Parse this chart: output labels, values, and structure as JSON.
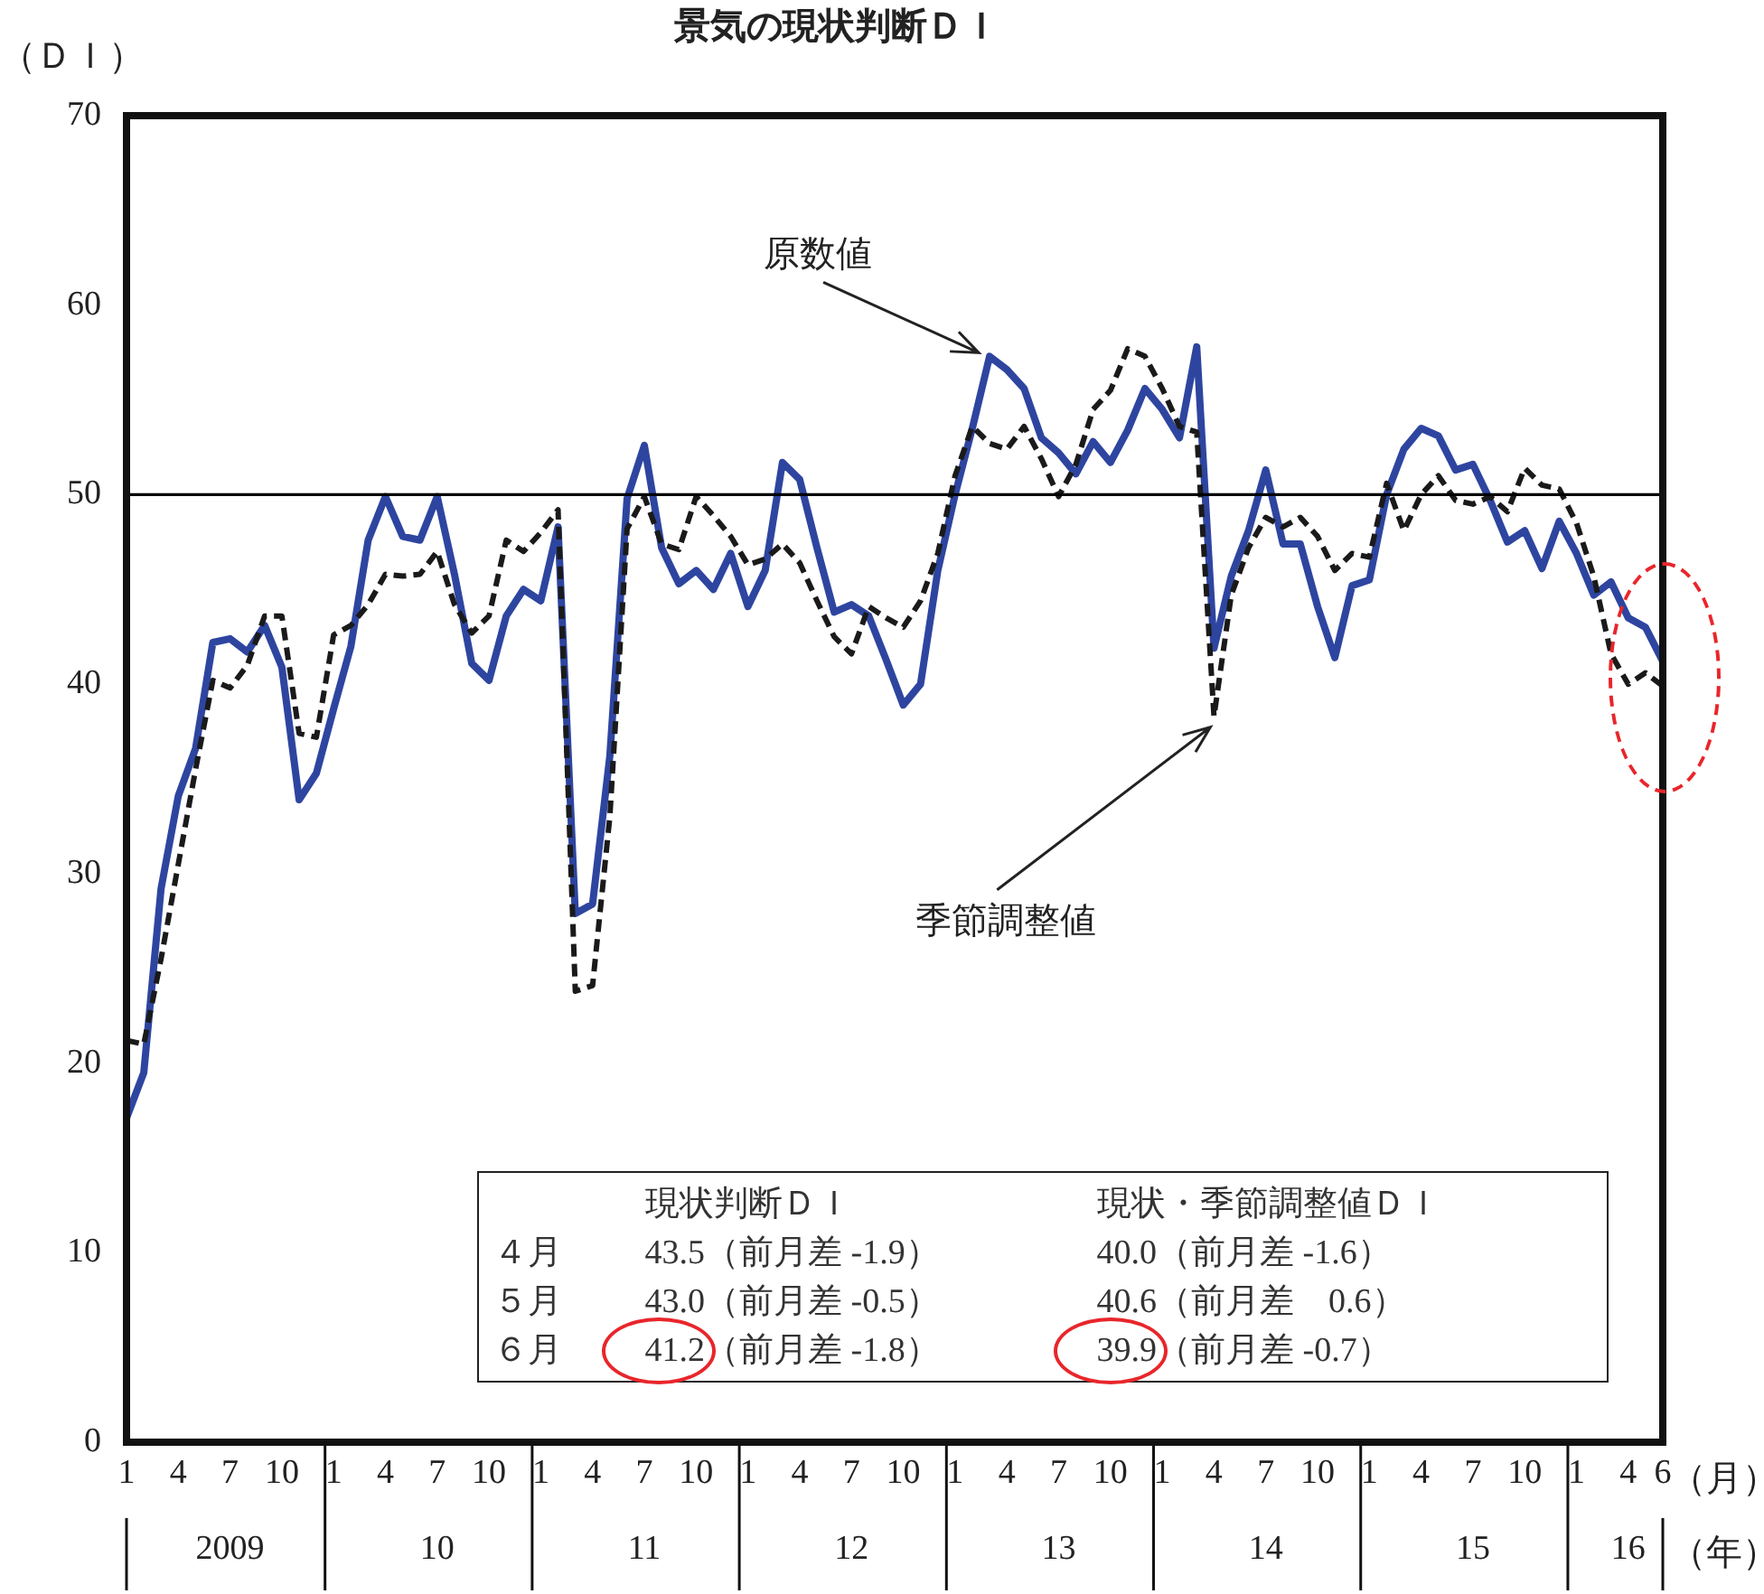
{
  "chart_data": {
    "type": "line",
    "title": "景気の現状判断ＤＩ",
    "ylabel": "（ＤＩ）",
    "xlabel": "（月）",
    "x2label": "（年）",
    "x": [
      "2009-01",
      "2009-02",
      "2009-03",
      "2009-04",
      "2009-05",
      "2009-06",
      "2009-07",
      "2009-08",
      "2009-09",
      "2009-10",
      "2009-11",
      "2009-12",
      "2010-01",
      "2010-02",
      "2010-03",
      "2010-04",
      "2010-05",
      "2010-06",
      "2010-07",
      "2010-08",
      "2010-09",
      "2010-10",
      "2010-11",
      "2010-12",
      "2011-01",
      "2011-02",
      "2011-03",
      "2011-04",
      "2011-05",
      "2011-06",
      "2011-07",
      "2011-08",
      "2011-09",
      "2011-10",
      "2011-11",
      "2011-12",
      "2012-01",
      "2012-02",
      "2012-03",
      "2012-04",
      "2012-05",
      "2012-06",
      "2012-07",
      "2012-08",
      "2012-09",
      "2012-10",
      "2012-11",
      "2012-12",
      "2013-01",
      "2013-02",
      "2013-03",
      "2013-04",
      "2013-05",
      "2013-06",
      "2013-07",
      "2013-08",
      "2013-09",
      "2013-10",
      "2013-11",
      "2013-12",
      "2014-01",
      "2014-02",
      "2014-03",
      "2014-04",
      "2014-05",
      "2014-06",
      "2014-07",
      "2014-08",
      "2014-09",
      "2014-10",
      "2014-11",
      "2014-12",
      "2015-01",
      "2015-02",
      "2015-03",
      "2015-04",
      "2015-05",
      "2015-06",
      "2015-07",
      "2015-08",
      "2015-09",
      "2015-10",
      "2015-11",
      "2015-12",
      "2016-01",
      "2016-02",
      "2016-03",
      "2016-04",
      "2016-05",
      "2016-06"
    ],
    "series": [
      {
        "color": "#2e45a0",
        "line_style": "solid",
        "values": [
          17.1,
          19.5,
          29.2,
          34.1,
          36.6,
          42.2,
          42.4,
          41.7,
          43.1,
          40.9,
          33.9,
          35.3,
          38.7,
          42.0,
          47.6,
          49.9,
          47.8,
          47.6,
          49.9,
          45.8,
          41.1,
          40.2,
          43.6,
          45.0,
          44.4,
          48.3,
          27.9,
          28.4,
          36.2,
          49.8,
          52.6,
          47.2,
          45.3,
          46.0,
          45.0,
          46.9,
          44.1,
          46.0,
          51.7,
          50.8,
          47.2,
          43.8,
          44.2,
          43.6,
          41.3,
          38.9,
          40.0,
          46.0,
          50.0,
          53.5,
          57.3,
          56.6,
          55.6,
          53.0,
          52.2,
          51.1,
          52.8,
          51.7,
          53.4,
          55.6,
          54.5,
          53.0,
          57.8,
          41.9,
          45.7,
          48.1,
          51.3,
          47.4,
          47.4,
          44.1,
          41.4,
          45.2,
          45.5,
          50.0,
          52.4,
          53.5,
          53.1,
          51.3,
          51.6,
          49.7,
          47.5,
          48.1,
          46.1,
          48.6,
          46.9,
          44.7,
          45.4,
          43.5,
          43.0,
          41.2
        ]
      },
      {
        "color": "#1a1a1a",
        "line_style": "dashed",
        "values": [
          21.2,
          21.0,
          25.5,
          30.5,
          35.5,
          40.2,
          39.8,
          41.0,
          43.6,
          43.6,
          37.4,
          37.2,
          42.6,
          43.1,
          44.2,
          45.8,
          45.7,
          45.8,
          47.0,
          44.2,
          42.7,
          43.6,
          47.6,
          47.0,
          48.0,
          49.2,
          23.8,
          24.1,
          33.0,
          48.2,
          49.9,
          47.4,
          47.1,
          49.9,
          48.9,
          47.8,
          46.3,
          46.6,
          47.4,
          46.4,
          44.4,
          42.5,
          41.6,
          44.1,
          43.5,
          43.0,
          44.4,
          46.9,
          51.0,
          53.6,
          52.7,
          52.4,
          53.6,
          51.9,
          49.9,
          51.6,
          54.5,
          55.5,
          57.7,
          57.3,
          55.6,
          53.6,
          53.3,
          38.3,
          44.7,
          47.2,
          48.8,
          48.3,
          48.8,
          47.8,
          46.0,
          46.9,
          46.7,
          50.6,
          48.1,
          50.0,
          51.0,
          49.7,
          49.5,
          49.9,
          49.1,
          51.4,
          50.5,
          50.3,
          48.5,
          45.7,
          41.6,
          40.0,
          40.6,
          39.9
        ]
      }
    ],
    "ylim": [
      0,
      70
    ],
    "yticks": [
      0,
      10,
      20,
      30,
      40,
      50,
      60,
      70
    ],
    "xlim": [
      "2009-01",
      "2016-06"
    ],
    "xticks": [
      {
        "value": "2009-01",
        "label": "1"
      },
      {
        "value": "2009-04",
        "label": "4"
      },
      {
        "value": "2009-07",
        "label": "7"
      },
      {
        "value": "2009-10",
        "label": "10"
      },
      {
        "value": "2010-01",
        "label": "1"
      },
      {
        "value": "2010-04",
        "label": "4"
      },
      {
        "value": "2010-07",
        "label": "7"
      },
      {
        "value": "2010-10",
        "label": "10"
      },
      {
        "value": "2011-01",
        "label": "1"
      },
      {
        "value": "2011-04",
        "label": "4"
      },
      {
        "value": "2011-07",
        "label": "7"
      },
      {
        "value": "2011-10",
        "label": "10"
      },
      {
        "value": "2012-01",
        "label": "1"
      },
      {
        "value": "2012-04",
        "label": "4"
      },
      {
        "value": "2012-07",
        "label": "7"
      },
      {
        "value": "2012-10",
        "label": "10"
      },
      {
        "value": "2013-01",
        "label": "1"
      },
      {
        "value": "2013-04",
        "label": "4"
      },
      {
        "value": "2013-07",
        "label": "7"
      },
      {
        "value": "2013-10",
        "label": "10"
      },
      {
        "value": "2014-01",
        "label": "1"
      },
      {
        "value": "2014-04",
        "label": "4"
      },
      {
        "value": "2014-07",
        "label": "7"
      },
      {
        "value": "2014-10",
        "label": "10"
      },
      {
        "value": "2015-01",
        "label": "1"
      },
      {
        "value": "2015-04",
        "label": "4"
      },
      {
        "value": "2015-07",
        "label": "7"
      },
      {
        "value": "2015-10",
        "label": "10"
      },
      {
        "value": "2016-01",
        "label": "1"
      },
      {
        "value": "2016-04",
        "label": "4"
      },
      {
        "value": "2016-06",
        "label": "6"
      }
    ],
    "x2lim": [
      "2009-01",
      "2016-06"
    ],
    "x2ticks": [
      {
        "value": "2009-07",
        "label": "2009"
      },
      {
        "value": "2010-07",
        "label": "10"
      },
      {
        "value": "2011-07",
        "label": "11"
      },
      {
        "value": "2012-07",
        "label": "12"
      },
      {
        "value": "2013-07",
        "label": "13"
      },
      {
        "value": "2014-07",
        "label": "14"
      },
      {
        "value": "2015-07",
        "label": "15"
      },
      {
        "value": "2016-04",
        "label": "16"
      }
    ],
    "ref_lines": [
      {
        "axis": "y",
        "value": 50,
        "color": "#000000"
      }
    ],
    "grid": false,
    "legend": false,
    "marker": "none",
    "annotations": [
      {
        "text": "原数値",
        "x": "2013-03",
        "y": 57.3
      },
      {
        "text": "季節調整値",
        "x": "2014-04",
        "y": 38.3
      },
      "現状判断ＤＩ",
      "現状・季節調整値ＤＩ",
      "４月",
      "43.5（前月差 -1.9）",
      "40.0（前月差 -1.6）",
      "５月",
      "43.0（前月差 -0.5）",
      "40.6（前月差　0.6）",
      "６月",
      "41.2（前月差 -1.8）",
      "39.9（前月差 -0.7）"
    ]
  }
}
